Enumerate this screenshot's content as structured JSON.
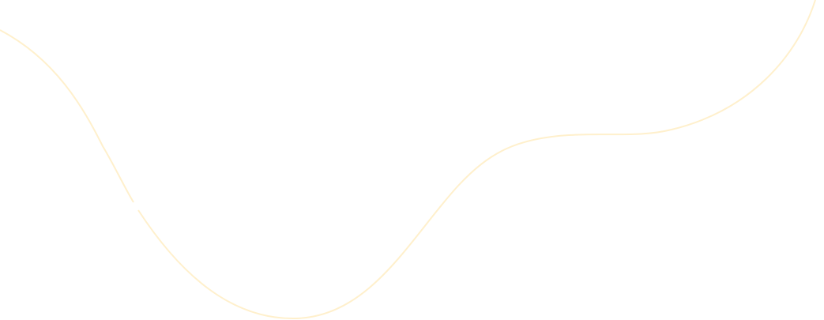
{
  "background_color": "#ffffff",
  "decoration": {
    "type": "wave-line",
    "stroke_color": "#FFF0CC"
  }
}
